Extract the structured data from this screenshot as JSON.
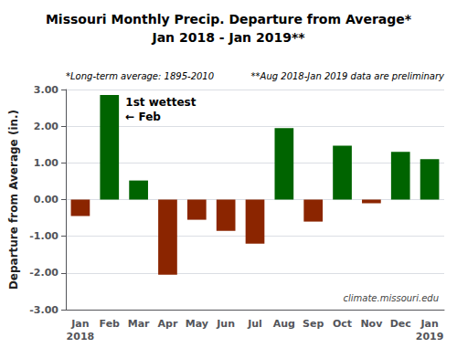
{
  "chart_data": {
    "type": "bar",
    "title": "Missouri Monthly Precip. Departure from Average*\nJan 2018 - Jan 2019**",
    "annotations": [
      "*Long-term average: 1895-2010",
      "**Aug 2018-Jan 2019 data are preliminary",
      "1st wettest\n← Feb",
      "climate.missouri.edu"
    ],
    "ylabel": "Departure from Average (in.)",
    "categories": [
      "Jan\n2018",
      "Feb",
      "Mar",
      "Apr",
      "May",
      "Jun",
      "Jul",
      "Aug",
      "Sep",
      "Oct",
      "Nov",
      "Dec",
      "Jan\n2019"
    ],
    "values": [
      -0.45,
      2.85,
      0.52,
      -2.05,
      -0.55,
      -0.85,
      -1.2,
      1.95,
      -0.6,
      1.47,
      -0.1,
      1.3,
      1.1
    ],
    "colors": [
      "#8B2500",
      "#006400",
      "#006400",
      "#8B2500",
      "#8B2500",
      "#8B2500",
      "#8B2500",
      "#006400",
      "#8B2500",
      "#006400",
      "#8B2500",
      "#006400",
      "#006400"
    ],
    "ylim": [
      -3.0,
      3.0
    ],
    "yticks": [
      {
        "value": -3,
        "label": "-3.00"
      },
      {
        "value": -2,
        "label": "-2.00"
      },
      {
        "value": -1,
        "label": "-1.00"
      },
      {
        "value": 0,
        "label": "0.00"
      },
      {
        "value": 1,
        "label": "1.00"
      },
      {
        "value": 2,
        "label": "2.00"
      },
      {
        "value": 3,
        "label": "3.00"
      }
    ],
    "grid": true
  }
}
